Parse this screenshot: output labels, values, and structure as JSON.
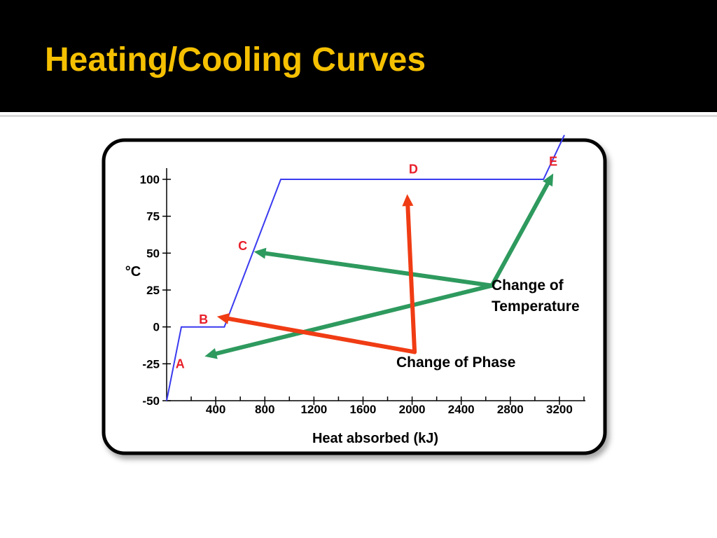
{
  "slide": {
    "title": "Heating/Cooling Curves",
    "title_color": "#f5c000"
  },
  "chart_data": {
    "type": "line",
    "title": "",
    "xlabel": "Heat absorbed (kJ)",
    "ylabel": "°C",
    "xlim": [
      0,
      3400
    ],
    "ylim": [
      -50,
      100
    ],
    "x_ticks": [
      400,
      800,
      1200,
      1600,
      2000,
      2400,
      2800,
      3200
    ],
    "x_minor_ticks": [
      200,
      600,
      1000,
      1400,
      1800,
      2200,
      2600,
      3000,
      3400
    ],
    "y_ticks": [
      100,
      75,
      50,
      25,
      0,
      -25,
      -50
    ],
    "grid": false,
    "series": [
      {
        "color": "#3a3af0",
        "x": [
          0,
          120,
          470,
          930,
          3070,
          3240
        ],
        "y": [
          -50,
          0,
          0,
          100,
          100,
          130
        ]
      }
    ],
    "point_labels": [
      {
        "text": "A",
        "x": 110,
        "y": -25,
        "color": "#e8202a"
      },
      {
        "text": "B",
        "x": 300,
        "y": 5,
        "color": "#e8202a"
      },
      {
        "text": "C",
        "x": 620,
        "y": 55,
        "color": "#e8202a"
      },
      {
        "text": "D",
        "x": 2010,
        "y": 107,
        "color": "#e8202a"
      },
      {
        "text": "E",
        "x": 3150,
        "y": 112,
        "color": "#e8202a"
      }
    ],
    "annotations": [
      {
        "text_lines": [
          "Change of",
          "Temperature"
        ],
        "color": "#2e9a5e",
        "from": [
          2650,
          28
        ],
        "to_points": [
          [
            310,
            -20
          ],
          [
            710,
            51
          ],
          [
            3150,
            104
          ]
        ]
      },
      {
        "text_lines": [
          "Change of Phase"
        ],
        "color": "#f03c14",
        "from": [
          2020,
          -17
        ],
        "to_points": [
          [
            410,
            7
          ],
          [
            1960,
            90
          ]
        ]
      }
    ]
  }
}
